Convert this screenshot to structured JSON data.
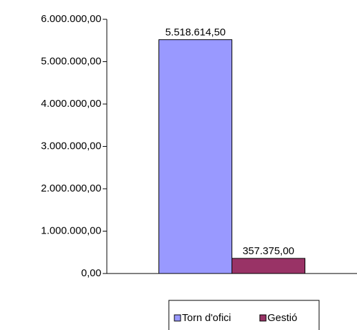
{
  "chart_data": {
    "type": "bar",
    "categories": [
      null
    ],
    "series": [
      {
        "name": "Torn d'ofici",
        "color": "#9999ff",
        "values": [
          5518614.5
        ],
        "value_labels": [
          "5.518.614,50"
        ]
      },
      {
        "name": "Gestió",
        "color": "#993366",
        "values": [
          357375
        ],
        "value_labels": [
          "357.375,00"
        ]
      }
    ],
    "ylim": [
      0,
      6000000
    ],
    "yticks": [
      {
        "value": 0,
        "label": "0,00"
      },
      {
        "value": 1000000,
        "label": "1.000.000,00"
      },
      {
        "value": 2000000,
        "label": "2.000.000,00"
      },
      {
        "value": 3000000,
        "label": "3.000.000,00"
      },
      {
        "value": 4000000,
        "label": "4.000.000,00"
      },
      {
        "value": 5000000,
        "label": "5.000.000,00"
      },
      {
        "value": 6000000,
        "label": "6.000.000,00"
      }
    ],
    "grid": false,
    "legend": "bottom"
  }
}
